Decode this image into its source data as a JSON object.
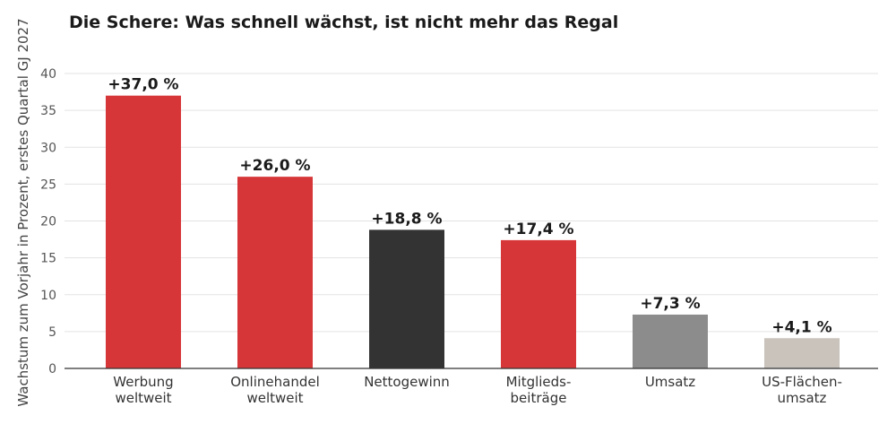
{
  "chart_data": {
    "type": "bar",
    "title": "Die Schere: Was schnell wächst, ist nicht mehr das Regal",
    "xlabel": "",
    "ylabel": "Wachstum zum Vorjahr in Prozent, erstes Quartal GJ 2027",
    "ylim": [
      0,
      40
    ],
    "yticks": [
      "0",
      "5",
      "10",
      "15",
      "20",
      "25",
      "30",
      "35",
      "40"
    ],
    "grid": true,
    "categories": [
      [
        "Werbung",
        "weltweit"
      ],
      [
        "Onlinehandel",
        "weltweit"
      ],
      [
        "Nettogewinn"
      ],
      [
        "Mitglieds-",
        "beiträge"
      ],
      [
        "Umsatz"
      ],
      [
        "US-Flächen-",
        "umsatz"
      ]
    ],
    "values": [
      37.0,
      26.0,
      18.8,
      17.4,
      7.3,
      4.1
    ],
    "data_labels": [
      "+37,0 %",
      "+26,0 %",
      "+18,8 %",
      "+17,4 %",
      "+7,3 %",
      "+4,1 %"
    ],
    "colors": [
      "#d63638",
      "#d63638",
      "#333333",
      "#d63638",
      "#8c8c8c",
      "#c9c3bb"
    ]
  }
}
